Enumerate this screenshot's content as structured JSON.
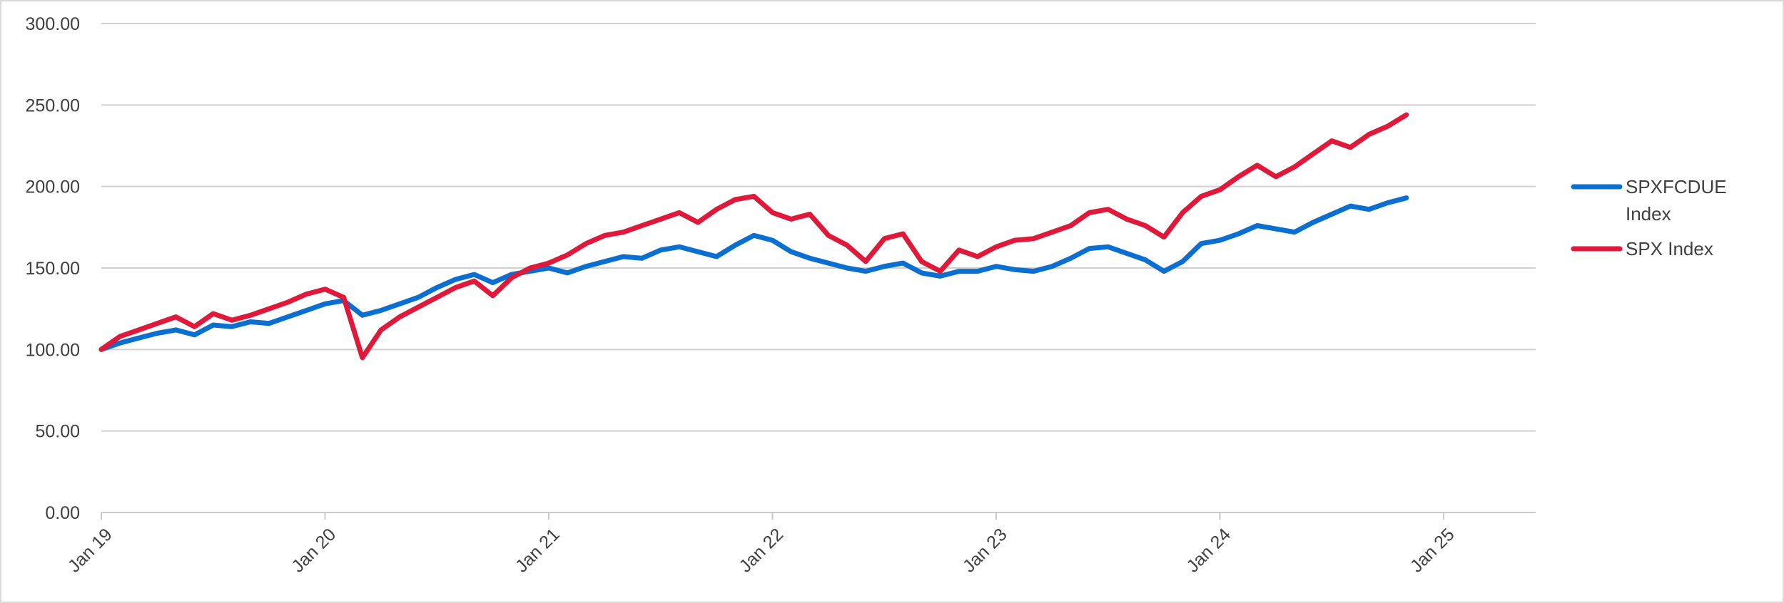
{
  "chart_data": {
    "type": "line",
    "title": "",
    "xlabel": "",
    "ylabel": "",
    "xlim": [
      "2019-01",
      "2025-01"
    ],
    "ylim": [
      0,
      300
    ],
    "yticks": [
      "0.00",
      "50.00",
      "100.00",
      "150.00",
      "200.00",
      "250.00",
      "300.00"
    ],
    "xticks": [
      "Jan 19",
      "Jan 20",
      "Jan 21",
      "Jan 22",
      "Jan 23",
      "Jan 24",
      "Jan 25"
    ],
    "grid": true,
    "legend_position": "right",
    "x": [
      "2019-01",
      "2019-02",
      "2019-03",
      "2019-04",
      "2019-05",
      "2019-06",
      "2019-07",
      "2019-08",
      "2019-09",
      "2019-10",
      "2019-11",
      "2019-12",
      "2020-01",
      "2020-02",
      "2020-03",
      "2020-04",
      "2020-05",
      "2020-06",
      "2020-07",
      "2020-08",
      "2020-09",
      "2020-10",
      "2020-11",
      "2020-12",
      "2021-01",
      "2021-02",
      "2021-03",
      "2021-04",
      "2021-05",
      "2021-06",
      "2021-07",
      "2021-08",
      "2021-09",
      "2021-10",
      "2021-11",
      "2021-12",
      "2022-01",
      "2022-02",
      "2022-03",
      "2022-04",
      "2022-05",
      "2022-06",
      "2022-07",
      "2022-08",
      "2022-09",
      "2022-10",
      "2022-11",
      "2022-12",
      "2023-01",
      "2023-02",
      "2023-03",
      "2023-04",
      "2023-05",
      "2023-06",
      "2023-07",
      "2023-08",
      "2023-09",
      "2023-10",
      "2023-11",
      "2023-12",
      "2024-01",
      "2024-02",
      "2024-03",
      "2024-04",
      "2024-05",
      "2024-06",
      "2024-07",
      "2024-08",
      "2024-09",
      "2024-10",
      "2024-11"
    ],
    "series": [
      {
        "name": "SPXFCDUE Index",
        "color": "#0a6fd1",
        "values": [
          100,
          104,
          107,
          110,
          112,
          109,
          115,
          114,
          117,
          116,
          120,
          124,
          128,
          130,
          121,
          124,
          128,
          132,
          138,
          143,
          146,
          141,
          146,
          148,
          150,
          147,
          151,
          154,
          157,
          156,
          161,
          163,
          160,
          157,
          164,
          170,
          167,
          160,
          156,
          153,
          150,
          148,
          151,
          153,
          147,
          145,
          148,
          148,
          151,
          149,
          148,
          151,
          156,
          162,
          163,
          159,
          155,
          148,
          154,
          165,
          167,
          171,
          176,
          174,
          172,
          178,
          183,
          188,
          186,
          190,
          193
        ]
      },
      {
        "name": "SPX Index",
        "color": "#e0183a",
        "values": [
          100,
          108,
          112,
          116,
          120,
          114,
          122,
          118,
          121,
          125,
          129,
          134,
          137,
          132,
          95,
          112,
          120,
          126,
          132,
          138,
          142,
          133,
          144,
          150,
          153,
          158,
          165,
          170,
          172,
          176,
          180,
          184,
          178,
          186,
          192,
          194,
          184,
          180,
          183,
          170,
          164,
          154,
          168,
          171,
          154,
          148,
          161,
          157,
          163,
          167,
          168,
          172,
          176,
          184,
          186,
          180,
          176,
          169,
          184,
          194,
          198,
          206,
          213,
          206,
          212,
          220,
          228,
          224,
          232,
          237,
          244
        ]
      }
    ]
  }
}
